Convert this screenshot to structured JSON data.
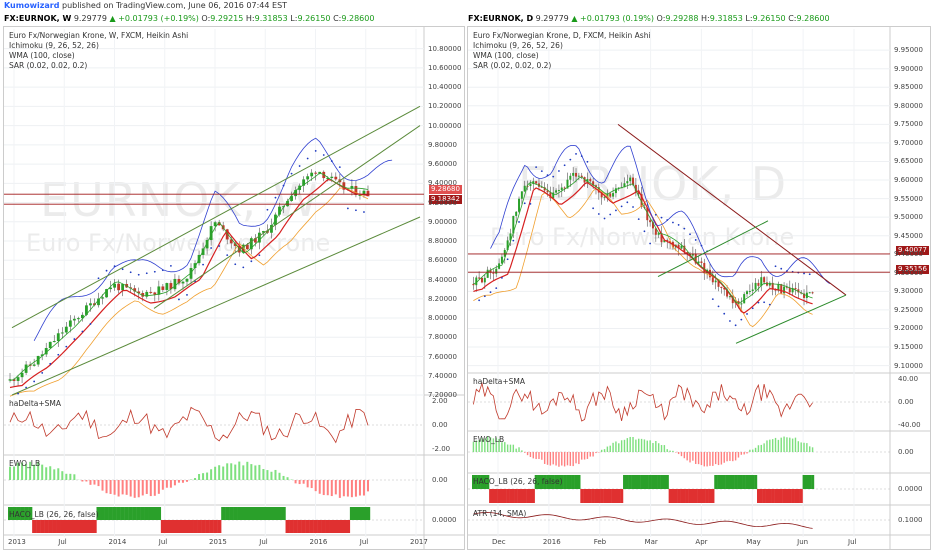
{
  "header": {
    "author": "Kumowizard",
    "published": "published on TradingView.com, June 06, 2016 07:44 EST"
  },
  "left": {
    "ticker": {
      "symbol": "FX:EURNOK, W",
      "price": "9.29779",
      "change": "+0.01793 (+0.19%)",
      "o": "9.29215",
      "h": "9.31853",
      "l": "9.26150",
      "c": "9.28600"
    },
    "title": "Euro Fx/Norwegian Krone, W, FXCM, Heikin Ashi",
    "indicators": [
      "Ichimoku (9, 26, 52, 26)",
      "WMA (100, close)",
      "SAR (0.02, 0.02, 0.2)"
    ],
    "watermark1": "EURNOK, W",
    "watermark2": "Euro Fx/Norwegian Krone",
    "price_ticks": [
      "10.80000",
      "10.60000",
      "10.40000",
      "10.20000",
      "10.00000",
      "9.80000",
      "9.60000",
      "9.40000",
      "9.20000",
      "9.00000",
      "8.80000",
      "8.60000",
      "8.40000",
      "8.20000",
      "8.00000",
      "7.80000",
      "7.60000",
      "7.40000",
      "7.20000"
    ],
    "price_tags": [
      "9.28680",
      "9.18342"
    ],
    "sub1": {
      "label": "haDelta+SMA",
      "ticks": [
        "2.00",
        "0.00",
        "-2.00"
      ]
    },
    "sub2": {
      "label": "EWO_LB",
      "ticks": [
        "0.00"
      ]
    },
    "sub3": {
      "label": "HACO_LB (26, 26, false)",
      "ticks": [
        "0.0000"
      ]
    },
    "time_ticks": [
      "2013",
      "Jul",
      "2014",
      "Jul",
      "2015",
      "Jul",
      "2016",
      "Jul",
      "2017"
    ]
  },
  "right": {
    "ticker": {
      "symbol": "FX:EURNOK, D",
      "price": "9.29779",
      "change": "+0.01793 (0.19%)",
      "o": "9.29288",
      "h": "9.31853",
      "l": "9.26150",
      "c": "9.28600"
    },
    "title": "Euro Fx/Norwegian Krone, D, FXCM, Heikin Ashi",
    "indicators": [
      "Ichimoku (9, 26, 52, 26)",
      "WMA (100, close)",
      "SAR (0.02, 0.02, 0.2)"
    ],
    "watermark1": "EURNOK, D",
    "watermark2": "Euro Fx/Norwegian Krone",
    "price_ticks": [
      "9.95000",
      "9.90000",
      "9.85000",
      "9.80000",
      "9.75000",
      "9.70000",
      "9.65000",
      "9.60000",
      "9.55000",
      "9.50000",
      "9.45000",
      "9.40000",
      "9.35000",
      "9.30000",
      "9.25000",
      "9.20000",
      "9.15000",
      "9.10000"
    ],
    "price_tags": [
      "9.40077",
      "9.35156"
    ],
    "sub1": {
      "label": "haDelta+SMA",
      "ticks": [
        "40.00",
        "0.00",
        "-40.00"
      ]
    },
    "sub2": {
      "label": "EWO_LB",
      "ticks": [
        "0.00"
      ]
    },
    "sub3": {
      "label": "HACO_LB (26, 26, false)",
      "ticks": [
        "0.0000"
      ]
    },
    "sub4": {
      "label": "ATR (14, SMA)",
      "ticks": [
        "0.1000"
      ]
    },
    "time_ticks": [
      "Dec",
      "2016",
      "Feb",
      "Mar",
      "Apr",
      "May",
      "Jun",
      "Jul"
    ]
  },
  "chart_data": [
    {
      "type": "candlestick",
      "title": "Euro Fx/Norwegian Krone, W, FXCM, Heikin Ashi",
      "ylim": [
        7.2,
        10.9
      ],
      "x_ticks": [
        "2013",
        "Jul",
        "2014",
        "Jul",
        "2015",
        "Jul",
        "2016",
        "Jul",
        "2017"
      ],
      "anchors": [
        {
          "t": "2013",
          "y": 7.35
        },
        {
          "t": "2013-04",
          "y": 7.55
        },
        {
          "t": "Jul 2013",
          "y": 7.85
        },
        {
          "t": "2013-10",
          "y": 8.1
        },
        {
          "t": "2014",
          "y": 8.35
        },
        {
          "t": "2014-04",
          "y": 8.25
        },
        {
          "t": "Jul 2014",
          "y": 8.3
        },
        {
          "t": "2014-10",
          "y": 8.45
        },
        {
          "t": "2015",
          "y": 9.0
        },
        {
          "t": "2015-03",
          "y": 8.7
        },
        {
          "t": "Jul 2015",
          "y": 8.9
        },
        {
          "t": "2015-10",
          "y": 9.3
        },
        {
          "t": "2016",
          "y": 9.55
        },
        {
          "t": "2016-04",
          "y": 9.35
        },
        {
          "t": "Jun 2016",
          "y": 9.29
        }
      ],
      "last_close": 9.286,
      "levels": [
        9.2868,
        9.18342
      ]
    },
    {
      "type": "candlestick",
      "title": "Euro Fx/Norwegian Krone, D, FXCM, Heikin Ashi",
      "ylim": [
        9.08,
        9.98
      ],
      "x_ticks": [
        "Dec",
        "2016",
        "Feb",
        "Mar",
        "Apr",
        "May",
        "Jun",
        "Jul"
      ],
      "anchors": [
        {
          "t": "Nov 2015",
          "y": 9.32
        },
        {
          "t": "Dec",
          "y": 9.37
        },
        {
          "t": "mid Dec",
          "y": 9.6
        },
        {
          "t": "2016",
          "y": 9.55
        },
        {
          "t": "mid Jan",
          "y": 9.62
        },
        {
          "t": "Feb",
          "y": 9.55
        },
        {
          "t": "mid Feb",
          "y": 9.6
        },
        {
          "t": "Mar",
          "y": 9.45
        },
        {
          "t": "mid Mar",
          "y": 9.42
        },
        {
          "t": "Apr",
          "y": 9.35
        },
        {
          "t": "mid Apr",
          "y": 9.26
        },
        {
          "t": "May",
          "y": 9.33
        },
        {
          "t": "mid May",
          "y": 9.3
        },
        {
          "t": "Jun",
          "y": 9.29
        }
      ],
      "last_close": 9.286,
      "levels": [
        9.40077,
        9.35156
      ]
    }
  ]
}
